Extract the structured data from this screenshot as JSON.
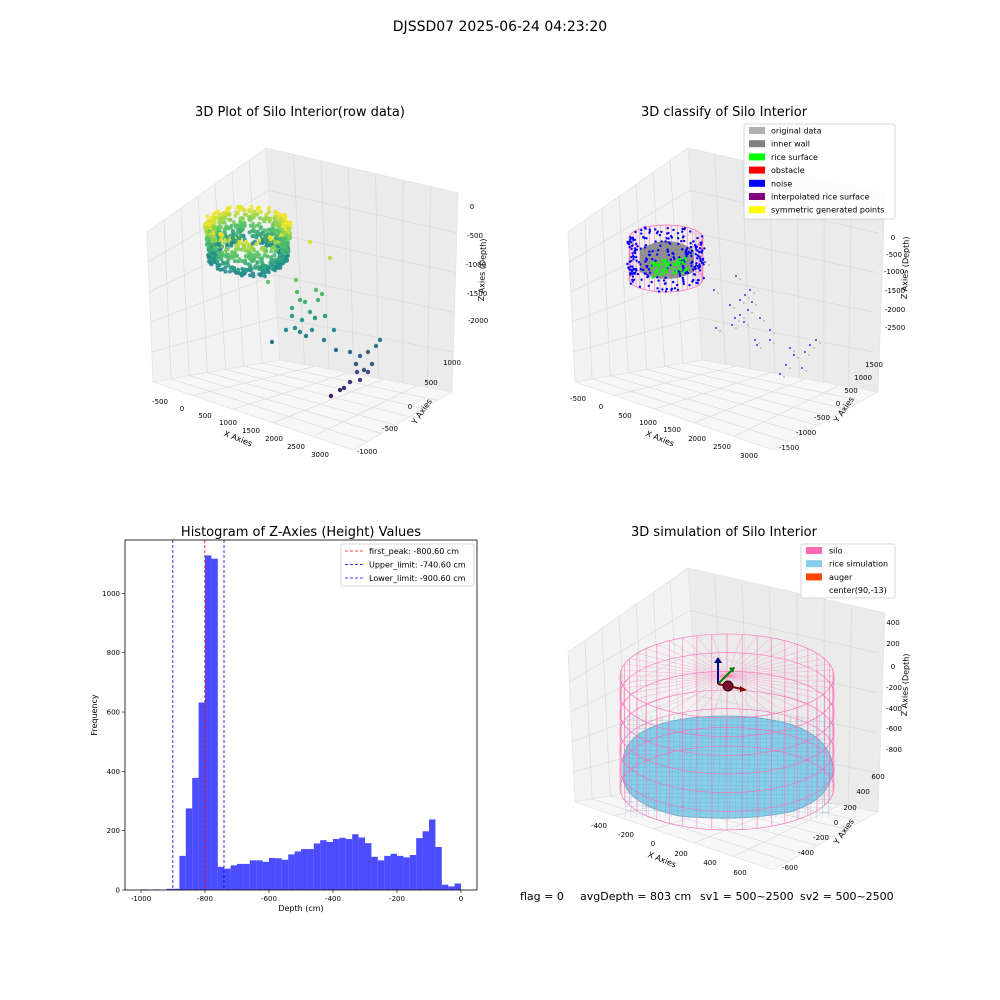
{
  "figure": {
    "suptitle": "DJSSD07 2025-06-24 04:23:20",
    "footer": {
      "flag": "flag = 0",
      "avg_depth": "avgDepth = 803 cm",
      "sv1": "sv1 = 500~2500",
      "sv2": "sv2 = 500~2500"
    }
  },
  "chart_data": [
    {
      "type": "scatter",
      "projection": "3d",
      "title": "3D Plot of Silo Interior(row data)",
      "xlabel": "X Axies",
      "ylabel": "Y Axies",
      "zlabel": "Z Axies (Depth)",
      "x_ticks": [
        "-500",
        "0",
        "500",
        "1000",
        "1500",
        "2000",
        "2500",
        "3000"
      ],
      "y_ticks": [
        "-1000",
        "-500",
        "0",
        "500",
        "1000"
      ],
      "z_ticks": [
        "0",
        "-500",
        "-1000",
        "-1500",
        "-2000"
      ],
      "colormap": "viridis",
      "grid": true
    },
    {
      "type": "scatter",
      "projection": "3d",
      "title": "3D classify of Silo Interior",
      "xlabel": "X Axies",
      "ylabel": "Y Axies",
      "zlabel": "Z Axies (Depth)",
      "x_ticks": [
        "-500",
        "0",
        "500",
        "1000",
        "1500",
        "2000",
        "2500",
        "3000"
      ],
      "y_ticks": [
        "-1500",
        "-1000",
        "-500",
        "0",
        "500",
        "1000",
        "1500"
      ],
      "z_ticks": [
        "0",
        "-500",
        "-1000",
        "-1500",
        "-2000",
        "-2500"
      ],
      "legend_position": "top-right",
      "legend": [
        {
          "label": "original data",
          "color": "#b0b0b0"
        },
        {
          "label": "inner wall",
          "color": "#808080"
        },
        {
          "label": "rice surface",
          "color": "#00ff00"
        },
        {
          "label": "obstacle",
          "color": "#ff0000"
        },
        {
          "label": "noise",
          "color": "#0000ff"
        },
        {
          "label": "interpolated rice surface",
          "color": "#800080"
        },
        {
          "label": "symmetric generated points",
          "color": "#ffff00"
        }
      ],
      "grid": true
    },
    {
      "type": "bar",
      "title": "Histogram of Z-Axies (Height) Values",
      "xlabel": "Depth (cm)",
      "ylabel": "Frequency",
      "xlim": [
        -1050,
        50
      ],
      "ylim": [
        0,
        1180
      ],
      "x_ticks": [
        -1000,
        -800,
        -600,
        -400,
        -200,
        0
      ],
      "y_ticks": [
        0,
        200,
        400,
        600,
        800,
        1000
      ],
      "bin_width": 20,
      "bin_color": "#0000ff",
      "bins": [
        {
          "x": -1000,
          "v": 2
        },
        {
          "x": -980,
          "v": 0
        },
        {
          "x": -960,
          "v": 2
        },
        {
          "x": -940,
          "v": 0
        },
        {
          "x": -920,
          "v": 4
        },
        {
          "x": -900,
          "v": 4
        },
        {
          "x": -880,
          "v": 115
        },
        {
          "x": -860,
          "v": 275
        },
        {
          "x": -840,
          "v": 378
        },
        {
          "x": -820,
          "v": 632
        },
        {
          "x": -800,
          "v": 1128
        },
        {
          "x": -780,
          "v": 1117
        },
        {
          "x": -760,
          "v": 78
        },
        {
          "x": -740,
          "v": 72
        },
        {
          "x": -720,
          "v": 83
        },
        {
          "x": -700,
          "v": 88
        },
        {
          "x": -680,
          "v": 88
        },
        {
          "x": -660,
          "v": 100
        },
        {
          "x": -640,
          "v": 100
        },
        {
          "x": -620,
          "v": 95
        },
        {
          "x": -600,
          "v": 108
        },
        {
          "x": -580,
          "v": 107
        },
        {
          "x": -560,
          "v": 102
        },
        {
          "x": -540,
          "v": 120
        },
        {
          "x": -520,
          "v": 130
        },
        {
          "x": -500,
          "v": 138
        },
        {
          "x": -480,
          "v": 138
        },
        {
          "x": -460,
          "v": 157
        },
        {
          "x": -440,
          "v": 168
        },
        {
          "x": -420,
          "v": 162
        },
        {
          "x": -400,
          "v": 172
        },
        {
          "x": -380,
          "v": 176
        },
        {
          "x": -360,
          "v": 172
        },
        {
          "x": -340,
          "v": 188
        },
        {
          "x": -320,
          "v": 177
        },
        {
          "x": -300,
          "v": 158
        },
        {
          "x": -280,
          "v": 112
        },
        {
          "x": -260,
          "v": 100
        },
        {
          "x": -240,
          "v": 115
        },
        {
          "x": -220,
          "v": 122
        },
        {
          "x": -200,
          "v": 115
        },
        {
          "x": -180,
          "v": 110
        },
        {
          "x": -160,
          "v": 118
        },
        {
          "x": -140,
          "v": 175
        },
        {
          "x": -120,
          "v": 198
        },
        {
          "x": -100,
          "v": 238
        },
        {
          "x": -80,
          "v": 145
        },
        {
          "x": -60,
          "v": 18
        },
        {
          "x": -40,
          "v": 12
        },
        {
          "x": -20,
          "v": 22
        }
      ],
      "vlines": [
        {
          "x": -800.6,
          "color": "#ff0000",
          "label": "first_peak: -800.60 cm"
        },
        {
          "x": -740.6,
          "color": "#0000ff",
          "label": "Upper_limit: -740.60 cm"
        },
        {
          "x": -900.6,
          "color": "#0000ff",
          "label": "Lower_limit: -900.60 cm"
        }
      ],
      "legend_position": "top-right",
      "grid": false
    },
    {
      "type": "scatter",
      "projection": "3d",
      "title": "3D simulation of Silo Interior",
      "xlabel": "X Axies",
      "ylabel": "Y Axies",
      "zlabel": "Z Axies (Depth)",
      "x_ticks": [
        "-400",
        "-200",
        "0",
        "200",
        "400",
        "600"
      ],
      "y_ticks": [
        "-600",
        "-400",
        "-200",
        "0",
        "200",
        "400",
        "600"
      ],
      "z_ticks": [
        "400",
        "200",
        "0",
        "-200",
        "-400",
        "-600",
        "-800"
      ],
      "legend_position": "top-right",
      "legend": [
        {
          "label": "silo",
          "color": "#ff69b4"
        },
        {
          "label": "rice simulation",
          "color": "#87ceeb"
        },
        {
          "label": "auger",
          "color": "#ff4500"
        },
        {
          "label": "center(90,-13)",
          "color": ""
        }
      ],
      "grid": true
    }
  ]
}
